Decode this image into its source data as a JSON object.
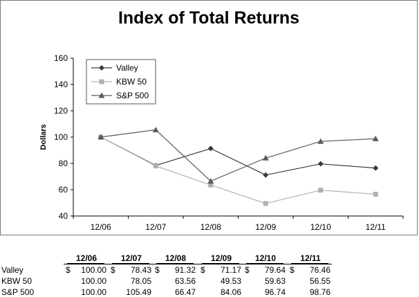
{
  "chart_data": {
    "type": "line",
    "title": "Index of Total Returns",
    "ylabel": "Dollars",
    "xlabel": "",
    "categories": [
      "12/06",
      "12/07",
      "12/08",
      "12/09",
      "12/10",
      "12/11"
    ],
    "ylim": [
      40,
      160
    ],
    "yticks": [
      40,
      60,
      80,
      100,
      120,
      140,
      160
    ],
    "grid": false,
    "legend_position": "top-left",
    "series": [
      {
        "name": "Valley",
        "marker": "diamond",
        "color": "#3a3a3a",
        "values": [
          100.0,
          78.43,
          91.32,
          71.17,
          79.64,
          76.46
        ]
      },
      {
        "name": "KBW 50",
        "marker": "square",
        "color": "#b0b0b0",
        "values": [
          100.0,
          78.05,
          63.56,
          49.53,
          59.63,
          56.55
        ]
      },
      {
        "name": "S&P 500",
        "marker": "triangle",
        "color": "#5a5a5a",
        "values": [
          100.0,
          105.49,
          66.47,
          84.06,
          96.74,
          98.76
        ]
      }
    ]
  },
  "table": {
    "headers": [
      "12/06",
      "12/07",
      "12/08",
      "12/09",
      "12/10",
      "12/11"
    ],
    "currency_symbol": "$",
    "rows": [
      {
        "label": "Valley",
        "values": [
          "100.00",
          "78.43",
          "91.32",
          "71.17",
          "79.64",
          "76.46"
        ],
        "dollar": true
      },
      {
        "label": "KBW 50",
        "values": [
          "100.00",
          "78.05",
          "63.56",
          "49.53",
          "59.63",
          "56.55"
        ],
        "dollar": false
      },
      {
        "label": "S&P 500",
        "values": [
          "100.00",
          "105.49",
          "66.47",
          "84.06",
          "96.74",
          "98.76"
        ],
        "dollar": false
      }
    ]
  }
}
